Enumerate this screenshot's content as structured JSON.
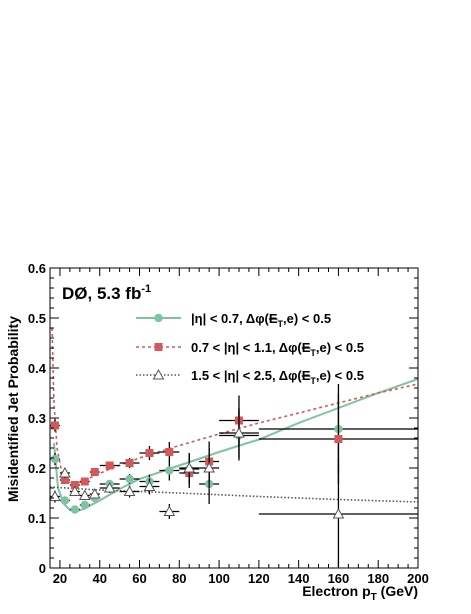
{
  "chart_data": {
    "type": "scatter",
    "experiment": "DØ, 5.3 fb",
    "experiment_sup": "-1",
    "xlabel": "Electron p",
    "xlabel_sub": "T",
    "xlabel_unit": " (GeV)",
    "ylabel": "Misidentified Jet Probability",
    "xlim": [
      15,
      200
    ],
    "ylim": [
      0,
      0.6
    ],
    "xticks": [
      20,
      40,
      60,
      80,
      100,
      120,
      140,
      160,
      180,
      200
    ],
    "yticks": [
      0,
      0.1,
      0.2,
      0.3,
      0.4,
      0.5,
      0.6
    ],
    "xtick_labels": [
      "20",
      "40",
      "60",
      "80",
      "100",
      "120",
      "140",
      "160",
      "180",
      "200"
    ],
    "ytick_labels": [
      "0",
      "0.1",
      "0.2",
      "0.3",
      "0.4",
      "0.5",
      "0.6"
    ],
    "series": [
      {
        "name": "|η| < 0.7, Δφ(E̸T,e) < 0.5",
        "legend_parts": [
          "|η| < 0.7, Δφ(",
          "E",
          "T",
          ",e) < 0.5"
        ],
        "color": "#7fc4a0",
        "marker": "circle",
        "line_style": "solid",
        "points": [
          {
            "x": 17.5,
            "y": 0.218,
            "xerr": 2.5,
            "yerr": 0.012
          },
          {
            "x": 22.5,
            "y": 0.135,
            "xerr": 2.5,
            "yerr": 0.008
          },
          {
            "x": 27.5,
            "y": 0.117,
            "xerr": 2.5,
            "yerr": 0.007
          },
          {
            "x": 32.5,
            "y": 0.126,
            "xerr": 2.5,
            "yerr": 0.007
          },
          {
            "x": 37.5,
            "y": 0.14,
            "xerr": 2.5,
            "yerr": 0.007
          },
          {
            "x": 45,
            "y": 0.168,
            "xerr": 5,
            "yerr": 0.008
          },
          {
            "x": 55,
            "y": 0.178,
            "xerr": 5,
            "yerr": 0.01
          },
          {
            "x": 65,
            "y": 0.173,
            "xerr": 5,
            "yerr": 0.014
          },
          {
            "x": 75,
            "y": 0.195,
            "xerr": 5,
            "yerr": 0.02
          },
          {
            "x": 85,
            "y": 0.198,
            "xerr": 5,
            "yerr": 0.03
          },
          {
            "x": 95,
            "y": 0.168,
            "xerr": 5,
            "yerr": 0.04
          },
          {
            "x": 110,
            "y": 0.265,
            "xerr": 10,
            "yerr": 0.05
          },
          {
            "x": 160,
            "y": 0.278,
            "xerr": 40,
            "yerr": 0.09
          }
        ],
        "fit": [
          [
            17,
            0.25
          ],
          [
            19,
            0.16
          ],
          [
            22,
            0.128
          ],
          [
            25,
            0.116
          ],
          [
            28,
            0.113
          ],
          [
            32,
            0.118
          ],
          [
            40,
            0.135
          ],
          [
            50,
            0.158
          ],
          [
            60,
            0.178
          ],
          [
            80,
            0.205
          ],
          [
            100,
            0.232
          ],
          [
            120,
            0.257
          ],
          [
            140,
            0.29
          ],
          [
            160,
            0.32
          ],
          [
            180,
            0.35
          ],
          [
            200,
            0.378
          ]
        ]
      },
      {
        "name": "0.7 < |η| < 1.1, Δφ(E̸T,e) < 0.5",
        "legend_parts": [
          "0.7 < |η| < 1.1, Δφ(",
          "E",
          "T",
          ",e) < 0.5"
        ],
        "color": "#d4585a",
        "marker": "square",
        "line_style": "dashed",
        "points": [
          {
            "x": 17.5,
            "y": 0.285,
            "xerr": 2.5,
            "yerr": 0.012
          },
          {
            "x": 22.5,
            "y": 0.176,
            "xerr": 2.5,
            "yerr": 0.008
          },
          {
            "x": 27.5,
            "y": 0.166,
            "xerr": 2.5,
            "yerr": 0.007
          },
          {
            "x": 32.5,
            "y": 0.173,
            "xerr": 2.5,
            "yerr": 0.007
          },
          {
            "x": 37.5,
            "y": 0.192,
            "xerr": 2.5,
            "yerr": 0.007
          },
          {
            "x": 45,
            "y": 0.205,
            "xerr": 5,
            "yerr": 0.008
          },
          {
            "x": 55,
            "y": 0.21,
            "xerr": 5,
            "yerr": 0.01
          },
          {
            "x": 65,
            "y": 0.23,
            "xerr": 5,
            "yerr": 0.014
          },
          {
            "x": 75,
            "y": 0.232,
            "xerr": 5,
            "yerr": 0.02
          },
          {
            "x": 85,
            "y": 0.19,
            "xerr": 5,
            "yerr": 0.03
          },
          {
            "x": 95,
            "y": 0.213,
            "xerr": 5,
            "yerr": 0.04
          },
          {
            "x": 110,
            "y": 0.295,
            "xerr": 10,
            "yerr": 0.05
          },
          {
            "x": 160,
            "y": 0.258,
            "xerr": 40,
            "yerr": 0.09
          }
        ],
        "fit": [
          [
            16,
            0.48
          ],
          [
            17,
            0.33
          ],
          [
            18.5,
            0.24
          ],
          [
            21,
            0.19
          ],
          [
            24,
            0.172
          ],
          [
            28,
            0.168
          ],
          [
            35,
            0.18
          ],
          [
            45,
            0.198
          ],
          [
            60,
            0.22
          ],
          [
            80,
            0.245
          ],
          [
            100,
            0.268
          ],
          [
            120,
            0.29
          ],
          [
            140,
            0.31
          ],
          [
            160,
            0.33
          ],
          [
            180,
            0.35
          ],
          [
            200,
            0.368
          ]
        ]
      },
      {
        "name": "1.5 < |η| < 2.5, Δφ(E̸T,e) < 0.5",
        "legend_parts": [
          "1.5 < |η| < 2.5, Δφ(",
          "E",
          "T",
          ",e) < 0.5"
        ],
        "color": "#555555",
        "marker": "open-triangle",
        "line_style": "dotted",
        "points": [
          {
            "x": 17.5,
            "y": 0.143,
            "xerr": 2.5,
            "yerr": 0.012
          },
          {
            "x": 22.5,
            "y": 0.19,
            "xerr": 2.5,
            "yerr": 0.01
          },
          {
            "x": 27.5,
            "y": 0.153,
            "xerr": 2.5,
            "yerr": 0.008
          },
          {
            "x": 32.5,
            "y": 0.145,
            "xerr": 2.5,
            "yerr": 0.008
          },
          {
            "x": 37.5,
            "y": 0.148,
            "xerr": 2.5,
            "yerr": 0.008
          },
          {
            "x": 45,
            "y": 0.16,
            "xerr": 5,
            "yerr": 0.01
          },
          {
            "x": 55,
            "y": 0.153,
            "xerr": 5,
            "yerr": 0.012
          },
          {
            "x": 65,
            "y": 0.163,
            "xerr": 5,
            "yerr": 0.016
          },
          {
            "x": 75,
            "y": 0.113,
            "xerr": 5,
            "yerr": 0.015
          },
          {
            "x": 85,
            "y": 0.2,
            "xerr": 5,
            "yerr": 0.03
          },
          {
            "x": 95,
            "y": 0.2,
            "xerr": 5,
            "yerr": 0.04
          },
          {
            "x": 110,
            "y": 0.27,
            "xerr": 10,
            "yerr": 0.05
          },
          {
            "x": 160,
            "y": 0.108,
            "xerr": 40,
            "yerr": 0.11
          }
        ],
        "fit": [
          [
            15,
            0.162
          ],
          [
            40,
            0.156
          ],
          [
            80,
            0.15
          ],
          [
            120,
            0.143
          ],
          [
            160,
            0.137
          ],
          [
            200,
            0.132
          ]
        ]
      }
    ],
    "grid": false,
    "legend_position": "top-right"
  }
}
